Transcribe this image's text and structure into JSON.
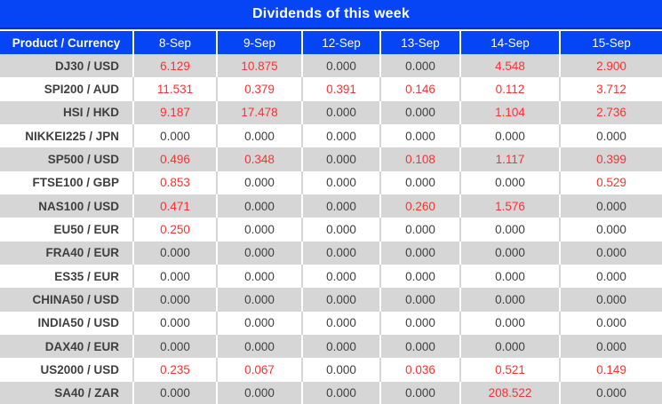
{
  "title": "Dividends of this week",
  "colors": {
    "header_blue": "#0645F6",
    "divider_navy": "#0A2FB0",
    "stripe_gray": "#D6D6D6",
    "text_dark": "#3F3F3F",
    "value_red": "#FA3232",
    "header_text": "#FFFFFF"
  },
  "table": {
    "product_header": "Product / Currency",
    "date_headers": [
      "8-Sep",
      "9-Sep",
      "12-Sep",
      "13-Sep",
      "14-Sep",
      "15-Sep"
    ],
    "rows": [
      {
        "product": "DJ30 / USD",
        "values": [
          "6.129",
          "10.875",
          "0.000",
          "0.000",
          "4.548",
          "2.900"
        ]
      },
      {
        "product": "SPI200 / AUD",
        "values": [
          "11.531",
          "0.379",
          "0.391",
          "0.146",
          "0.112",
          "3.712"
        ]
      },
      {
        "product": "HSI / HKD",
        "values": [
          "9.187",
          "17.478",
          "0.000",
          "0.000",
          "1.104",
          "2.736"
        ]
      },
      {
        "product": "NIKKEI225 / JPN",
        "values": [
          "0.000",
          "0.000",
          "0.000",
          "0.000",
          "0.000",
          "0.000"
        ]
      },
      {
        "product": "SP500 / USD",
        "values": [
          "0.496",
          "0.348",
          "0.000",
          "0.108",
          "1.117",
          "0.399"
        ]
      },
      {
        "product": "FTSE100 / GBP",
        "values": [
          "0.853",
          "0.000",
          "0.000",
          "0.000",
          "0.000",
          "0.529"
        ]
      },
      {
        "product": "NAS100 / USD",
        "values": [
          "0.471",
          "0.000",
          "0.000",
          "0.260",
          "1.576",
          "0.000"
        ]
      },
      {
        "product": "EU50 / EUR",
        "values": [
          "0.250",
          "0.000",
          "0.000",
          "0.000",
          "0.000",
          "0.000"
        ]
      },
      {
        "product": "FRA40 / EUR",
        "values": [
          "0.000",
          "0.000",
          "0.000",
          "0.000",
          "0.000",
          "0.000"
        ]
      },
      {
        "product": "ES35 / EUR",
        "values": [
          "0.000",
          "0.000",
          "0.000",
          "0.000",
          "0.000",
          "0.000"
        ]
      },
      {
        "product": "CHINA50 / USD",
        "values": [
          "0.000",
          "0.000",
          "0.000",
          "0.000",
          "0.000",
          "0.000"
        ]
      },
      {
        "product": "INDIA50 / USD",
        "values": [
          "0.000",
          "0.000",
          "0.000",
          "0.000",
          "0.000",
          "0.000"
        ]
      },
      {
        "product": "DAX40 / EUR",
        "values": [
          "0.000",
          "0.000",
          "0.000",
          "0.000",
          "0.000",
          "0.000"
        ]
      },
      {
        "product": "US2000 / USD",
        "values": [
          "0.235",
          "0.067",
          "0.000",
          "0.036",
          "0.521",
          "0.149"
        ]
      },
      {
        "product": "SA40 / ZAR",
        "values": [
          "0.000",
          "0.000",
          "0.000",
          "0.000",
          "208.522",
          "0.000"
        ]
      }
    ]
  }
}
